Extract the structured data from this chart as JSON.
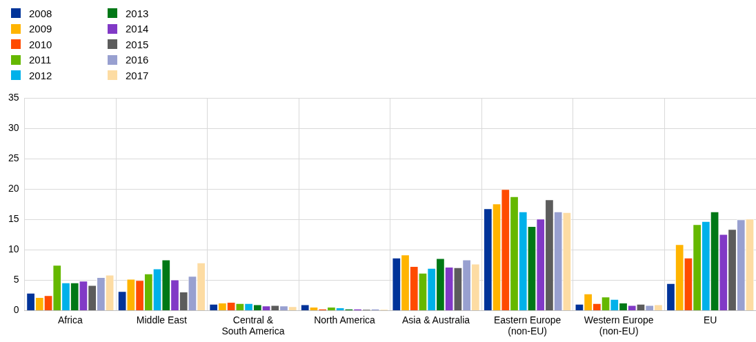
{
  "chart_data": {
    "type": "bar",
    "categories": [
      "Africa",
      "Middle East",
      "Central &\nSouth America",
      "North America",
      "Asia & Australia",
      "Eastern Europe\n(non-EU)",
      "Western Europe\n(non-EU)",
      "EU"
    ],
    "series": [
      {
        "name": "2008",
        "color": "#003399",
        "values": [
          2.9,
          3.2,
          1.1,
          1.0,
          8.7,
          16.8,
          1.1,
          4.5
        ]
      },
      {
        "name": "2009",
        "color": "#ffb400",
        "values": [
          2.2,
          5.2,
          1.3,
          0.6,
          9.2,
          17.6,
          2.8,
          10.9
        ]
      },
      {
        "name": "2010",
        "color": "#ff4b00",
        "values": [
          2.5,
          5.0,
          1.4,
          0.3,
          7.3,
          20.0,
          1.2,
          8.7
        ]
      },
      {
        "name": "2011",
        "color": "#65b800",
        "values": [
          7.5,
          6.1,
          1.2,
          0.6,
          6.2,
          18.8,
          2.3,
          14.2
        ]
      },
      {
        "name": "2012",
        "color": "#00b1ea",
        "values": [
          4.6,
          6.9,
          1.2,
          0.5,
          7.0,
          16.3,
          1.9,
          14.7
        ]
      },
      {
        "name": "2013",
        "color": "#007816",
        "values": [
          4.6,
          8.4,
          1.0,
          0.3,
          8.6,
          13.9,
          1.3,
          16.3
        ]
      },
      {
        "name": "2014",
        "color": "#8139c6",
        "values": [
          4.9,
          5.1,
          0.8,
          0.3,
          7.2,
          15.1,
          0.9,
          12.6
        ]
      },
      {
        "name": "2015",
        "color": "#5c5c5c",
        "values": [
          4.2,
          3.1,
          0.9,
          0.2,
          7.1,
          18.3,
          1.1,
          13.4
        ]
      },
      {
        "name": "2016",
        "color": "#98a0d0",
        "values": [
          5.5,
          5.7,
          0.8,
          0.3,
          8.4,
          16.3,
          0.9,
          15.0
        ]
      },
      {
        "name": "2017",
        "color": "#fddca3",
        "values": [
          5.9,
          7.9,
          0.7,
          0.2,
          7.7,
          16.2,
          1.0,
          15.1
        ]
      }
    ],
    "ylim": [
      0,
      35
    ],
    "yticks": [
      0,
      5,
      10,
      15,
      20,
      25,
      30,
      35
    ],
    "grid": true,
    "legend": "top left"
  }
}
